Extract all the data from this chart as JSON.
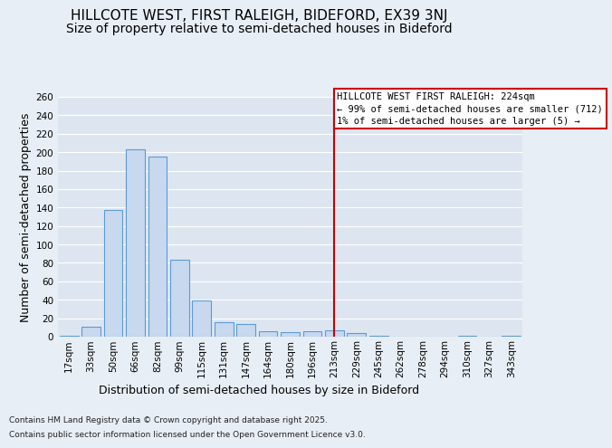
{
  "title_line1": "HILLCOTE WEST, FIRST RALEIGH, BIDEFORD, EX39 3NJ",
  "title_line2": "Size of property relative to semi-detached houses in Bideford",
  "xlabel": "Distribution of semi-detached houses by size in Bideford",
  "ylabel": "Number of semi-detached properties",
  "categories": [
    "17sqm",
    "33sqm",
    "50sqm",
    "66sqm",
    "82sqm",
    "99sqm",
    "115sqm",
    "131sqm",
    "147sqm",
    "164sqm",
    "180sqm",
    "196sqm",
    "213sqm",
    "229sqm",
    "245sqm",
    "262sqm",
    "278sqm",
    "294sqm",
    "310sqm",
    "327sqm",
    "343sqm"
  ],
  "values": [
    1,
    11,
    137,
    203,
    195,
    83,
    39,
    16,
    14,
    6,
    5,
    6,
    7,
    4,
    1,
    0,
    0,
    0,
    1,
    0,
    1
  ],
  "bar_color": "#c8d8ee",
  "bar_edge_color": "#5b9bd5",
  "vline_x_index": 12,
  "vline_color": "#cc0000",
  "annotation_text": "HILLCOTE WEST FIRST RALEIGH: 224sqm\n← 99% of semi-detached houses are smaller (712)\n1% of semi-detached houses are larger (5) →",
  "annotation_box_color": "#cc0000",
  "ylim": [
    0,
    260
  ],
  "yticks": [
    0,
    20,
    40,
    60,
    80,
    100,
    120,
    140,
    160,
    180,
    200,
    220,
    240,
    260
  ],
  "bg_color": "#e8eef5",
  "plot_bg_color": "#dde6f0",
  "grid_color": "#ffffff",
  "footer_line1": "Contains HM Land Registry data © Crown copyright and database right 2025.",
  "footer_line2": "Contains public sector information licensed under the Open Government Licence v3.0.",
  "title_fontsize": 11,
  "subtitle_fontsize": 10,
  "label_fontsize": 9,
  "tick_fontsize": 7.5,
  "annotation_fontsize": 7.5,
  "footer_fontsize": 6.5
}
